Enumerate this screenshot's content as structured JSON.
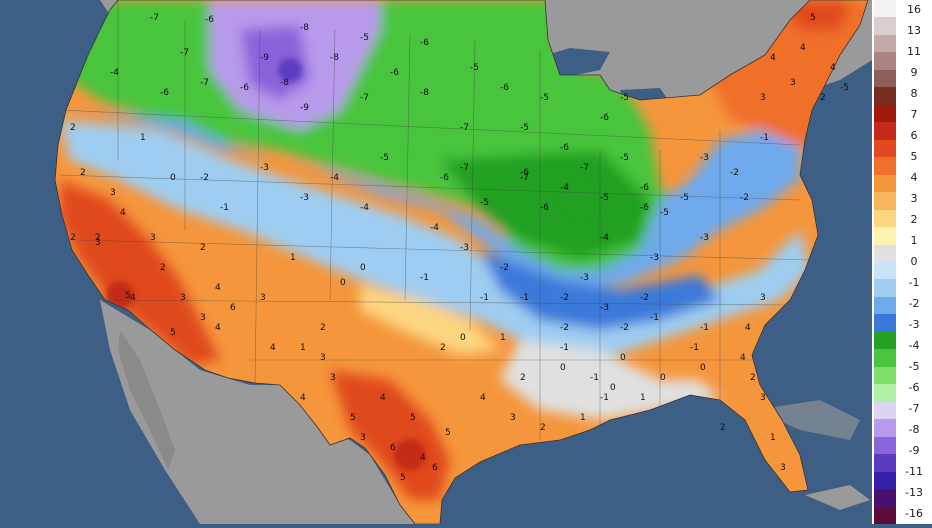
{
  "legend": {
    "colors": [
      "#f3f1f1",
      "#d9cfcf",
      "#c2aaa8",
      "#a98480",
      "#8e5f58",
      "#7a2c20",
      "#a01a10",
      "#c52a18",
      "#e04a1e",
      "#f0702a",
      "#f5963c",
      "#f8b65a",
      "#fbd680",
      "#fdf3ae",
      "#e0e0e0",
      "#c8e4f4",
      "#9fcdf1",
      "#6ea9ec",
      "#3a79da",
      "#22a024",
      "#4ac43c",
      "#7fe06c",
      "#b2f0a4",
      "#ddd4f4",
      "#b89aec",
      "#8a64da",
      "#5a3cc0",
      "#3420a6",
      "#4a1070",
      "#5e0a3c"
    ],
    "labels": [
      "16",
      "13",
      "11",
      "9",
      "8",
      "7",
      "6",
      "5",
      "4",
      "3",
      "2",
      "1",
      "0",
      "-1",
      "-2",
      "-3",
      "-4",
      "-5",
      "-6",
      "-7",
      "-8",
      "-9",
      "-11",
      "-13",
      "-16"
    ]
  },
  "map_labels": [
    {
      "v": "-7"
    },
    {
      "v": "-6"
    },
    {
      "v": "-8"
    },
    {
      "v": "-5"
    },
    {
      "v": "-6"
    },
    {
      "v": "-7"
    },
    {
      "v": "-9"
    },
    {
      "v": "-8"
    },
    {
      "v": "-6"
    },
    {
      "v": "-5"
    },
    {
      "v": "-7"
    },
    {
      "v": "-6"
    },
    {
      "v": "-4"
    },
    {
      "v": "-6"
    },
    {
      "v": "-8"
    },
    {
      "v": "-9"
    },
    {
      "v": "-7"
    },
    {
      "v": "-8"
    },
    {
      "v": "-6"
    },
    {
      "v": "-5"
    },
    {
      "v": "-7"
    },
    {
      "v": "-5"
    },
    {
      "v": "-6"
    },
    {
      "v": "-6"
    },
    {
      "v": "-5"
    },
    {
      "v": "-7"
    },
    {
      "v": "-6"
    },
    {
      "v": "-4"
    },
    {
      "v": "-5"
    },
    {
      "v": "-6"
    },
    {
      "v": "-5"
    },
    {
      "v": "-6"
    },
    {
      "v": "-7"
    },
    {
      "v": "-7"
    },
    {
      "v": "-6"
    },
    {
      "v": "-5"
    },
    {
      "v": "-4"
    },
    {
      "v": "-3"
    },
    {
      "v": "-2"
    },
    {
      "v": "-3"
    },
    {
      "v": "-4"
    },
    {
      "v": "-5"
    },
    {
      "v": "-3"
    },
    {
      "v": "-2"
    },
    {
      "v": "-1"
    },
    {
      "v": "-3"
    },
    {
      "v": "-4"
    },
    {
      "v": "-3"
    },
    {
      "v": "-2"
    },
    {
      "v": "-5"
    },
    {
      "v": "-6"
    },
    {
      "v": "-5"
    },
    {
      "v": "-4"
    },
    {
      "v": "-3"
    },
    {
      "v": "-2"
    },
    {
      "v": "-1"
    },
    {
      "v": "2"
    },
    {
      "v": "1"
    },
    {
      "v": "0"
    },
    {
      "v": "-1"
    },
    {
      "v": "2"
    },
    {
      "v": "3"
    },
    {
      "v": "2"
    },
    {
      "v": "0"
    },
    {
      "v": "-1"
    },
    {
      "v": "-2"
    },
    {
      "v": "-3"
    },
    {
      "v": "-2"
    },
    {
      "v": "-1"
    },
    {
      "v": "0"
    },
    {
      "v": "2"
    },
    {
      "v": "3"
    },
    {
      "v": "4"
    },
    {
      "v": "3"
    },
    {
      "v": "2"
    },
    {
      "v": "1"
    },
    {
      "v": "0"
    },
    {
      "v": "-1"
    },
    {
      "v": "-2"
    },
    {
      "v": "-3"
    },
    {
      "v": "2"
    },
    {
      "v": "3"
    },
    {
      "v": "4"
    },
    {
      "v": "5"
    },
    {
      "v": "4"
    },
    {
      "v": "3"
    },
    {
      "v": "2"
    },
    {
      "v": "1"
    },
    {
      "v": "0"
    },
    {
      "v": "-1"
    },
    {
      "v": "3"
    },
    {
      "v": "4"
    },
    {
      "v": "5"
    },
    {
      "v": "6"
    },
    {
      "v": "4"
    },
    {
      "v": "3"
    },
    {
      "v": "2"
    },
    {
      "v": "1"
    },
    {
      "v": "0"
    },
    {
      "v": "-1"
    },
    {
      "v": "3"
    },
    {
      "v": "4"
    },
    {
      "v": "5"
    },
    {
      "v": "6"
    },
    {
      "v": "5"
    },
    {
      "v": "4"
    },
    {
      "v": "3"
    },
    {
      "v": "2"
    },
    {
      "v": "1"
    },
    {
      "v": "0"
    },
    {
      "v": "4"
    },
    {
      "v": "5"
    },
    {
      "v": "6"
    },
    {
      "v": "5"
    },
    {
      "v": "4"
    },
    {
      "v": "3"
    },
    {
      "v": "2"
    },
    {
      "v": "1"
    },
    {
      "v": "0"
    },
    {
      "v": "-1"
    },
    {
      "v": "3"
    },
    {
      "v": "4"
    },
    {
      "v": "4"
    },
    {
      "v": "3"
    },
    {
      "v": "2"
    },
    {
      "v": "1"
    },
    {
      "v": "0"
    },
    {
      "v": "-1"
    },
    {
      "v": "-2"
    },
    {
      "v": "-1"
    },
    {
      "v": "3"
    },
    {
      "v": "2"
    },
    {
      "v": "4"
    },
    {
      "v": "3"
    },
    {
      "v": "2"
    },
    {
      "v": "4"
    },
    {
      "v": "-5"
    },
    {
      "v": "5"
    },
    {
      "v": "4"
    },
    {
      "v": "3"
    }
  ]
}
